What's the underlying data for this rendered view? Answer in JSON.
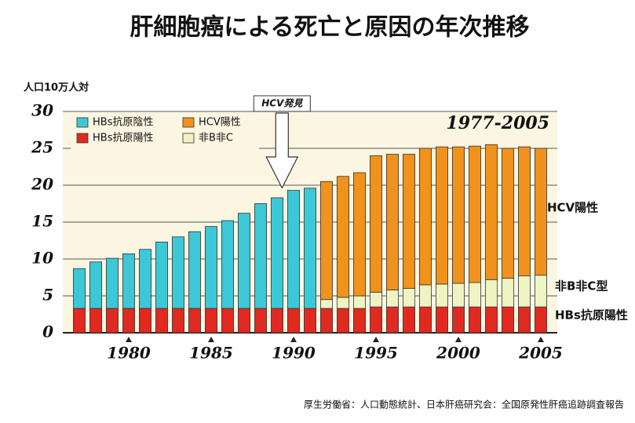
{
  "chart_data": {
    "type": "bar",
    "stacked": true,
    "title": "肝細胞癌による死亡と原因の年次推移",
    "subtitle": "1977-2005",
    "y_label": "人口10万人対",
    "annotation": "HCV発見",
    "right_labels": [
      "HCV陽性",
      "非B非C型",
      "HBs抗原陽性"
    ],
    "source": "厚生労働省：人口動態統計、日本肝癌研究会：全国原発性肝癌追跡調査報告",
    "x": [
      1977,
      1978,
      1979,
      1980,
      1981,
      1982,
      1983,
      1984,
      1985,
      1986,
      1987,
      1988,
      1989,
      1990,
      1991,
      1992,
      1993,
      1994,
      1995,
      1996,
      1997,
      1998,
      1999,
      2000,
      2001,
      2002,
      2003,
      2004,
      2005
    ],
    "xlim": [
      1976,
      2006
    ],
    "xticks": [
      1980,
      1985,
      1990,
      1995,
      2000,
      2005
    ],
    "ylim": [
      0,
      30
    ],
    "yticks": [
      0,
      5,
      10,
      15,
      20,
      25,
      30
    ],
    "grid": true,
    "series": [
      {
        "name": "HBs抗原陽性",
        "color": "#e02a20",
        "values": [
          3.3,
          3.3,
          3.3,
          3.3,
          3.3,
          3.3,
          3.3,
          3.3,
          3.3,
          3.3,
          3.3,
          3.3,
          3.3,
          3.3,
          3.3,
          3.3,
          3.3,
          3.3,
          3.5,
          3.5,
          3.5,
          3.5,
          3.5,
          3.5,
          3.5,
          3.5,
          3.5,
          3.5,
          3.5
        ]
      },
      {
        "name": "HBs抗原陰性",
        "color": "#3cc8d6",
        "values": [
          5.4,
          6.3,
          6.8,
          7.4,
          8.0,
          9.0,
          9.7,
          10.4,
          11.1,
          11.9,
          12.9,
          14.2,
          15.0,
          16.0,
          16.3,
          null,
          null,
          null,
          null,
          null,
          null,
          null,
          null,
          null,
          null,
          null,
          null,
          null,
          null
        ]
      },
      {
        "name": "非B非C",
        "color": "#eef4c2",
        "values": [
          null,
          null,
          null,
          null,
          null,
          null,
          null,
          null,
          null,
          null,
          null,
          null,
          null,
          null,
          null,
          1.2,
          1.5,
          1.7,
          2.0,
          2.3,
          2.5,
          3.0,
          3.1,
          3.2,
          3.3,
          3.7,
          3.9,
          4.2,
          4.3
        ]
      },
      {
        "name": "HCV陽性",
        "color": "#f0921c",
        "values": [
          null,
          null,
          null,
          null,
          null,
          null,
          null,
          null,
          null,
          null,
          null,
          null,
          null,
          null,
          null,
          16.0,
          16.4,
          16.7,
          18.5,
          18.4,
          18.2,
          18.5,
          18.6,
          18.5,
          18.5,
          18.3,
          17.6,
          17.5,
          17.2
        ]
      }
    ]
  }
}
